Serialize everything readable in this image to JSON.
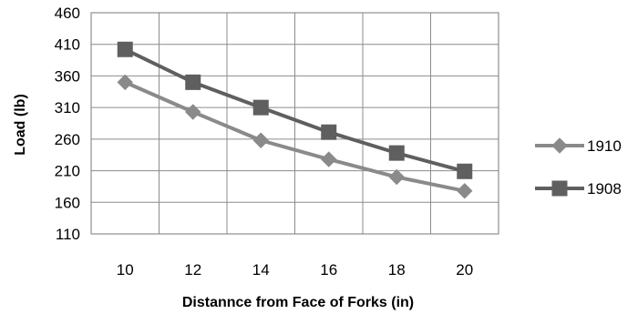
{
  "chart_data": {
    "type": "line",
    "title": "",
    "xlabel": "Distannce  from Face of Forks (in)",
    "ylabel": "Load (lb)",
    "x": [
      10,
      12,
      14,
      16,
      18,
      20
    ],
    "x_ticks": [
      "10",
      "12",
      "14",
      "16",
      "18",
      "20"
    ],
    "ylim": [
      110,
      460
    ],
    "y_ticks": [
      "110",
      "160",
      "210",
      "260",
      "310",
      "360",
      "410",
      "460"
    ],
    "grid": true,
    "legend_position": "right",
    "series": [
      {
        "name": "1910",
        "marker": "diamond",
        "color": "#8a8a8a",
        "values": [
          350,
          303,
          258,
          228,
          200,
          178
        ]
      },
      {
        "name": "1908",
        "marker": "square",
        "color": "#5f5f5f",
        "values": [
          402,
          350,
          310,
          271,
          238,
          209
        ]
      }
    ]
  }
}
